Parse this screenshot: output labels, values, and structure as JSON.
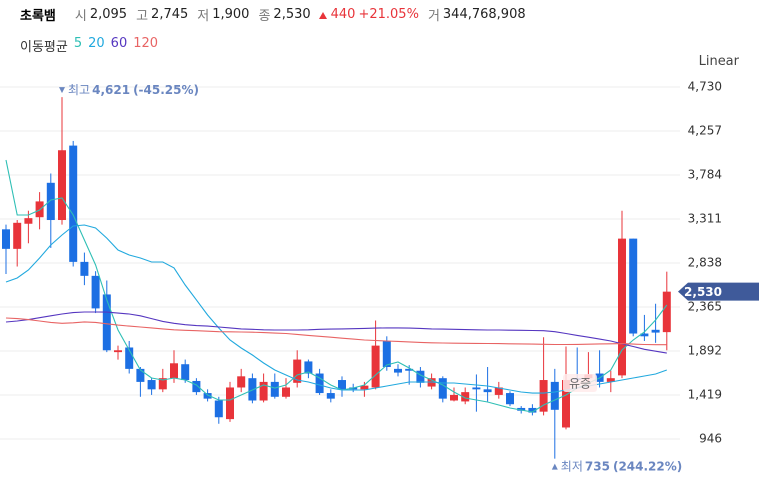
{
  "chart_data": {
    "type": "candlestick",
    "title": "초록뱀",
    "summary": [
      {
        "label": "시",
        "value": "2,095"
      },
      {
        "label": "고",
        "value": "2,745"
      },
      {
        "label": "저",
        "value": "1,900"
      },
      {
        "label": "종",
        "value": "2,530"
      }
    ],
    "change": "440",
    "change_pct": "+21.05%",
    "volume_label": "거",
    "volume": "344,768,908",
    "ma_title": "이동평균",
    "scale": "Linear",
    "up_color": "#e8343a",
    "down_color": "#1c6fe3",
    "grid": true,
    "ylim": [
      613,
      4805
    ],
    "yticks": [
      {
        "value": 4730,
        "label": "4,730"
      },
      {
        "value": 4257,
        "label": "4,257"
      },
      {
        "value": 3784,
        "label": "3,784"
      },
      {
        "value": 3311,
        "label": "3,311"
      },
      {
        "value": 2838,
        "label": "2,838"
      },
      {
        "value": 2365,
        "label": "2,365"
      },
      {
        "value": 1892,
        "label": "1,892"
      },
      {
        "value": 1419,
        "label": "1,419"
      },
      946
    ],
    "open": [
      3200,
      2990,
      3260,
      3330,
      3700,
      3300,
      4100,
      2850,
      2700,
      2500,
      1880,
      1930,
      1700,
      1580,
      1480,
      1600,
      1750,
      1570,
      1440,
      1360,
      1160,
      1500,
      1600,
      1360,
      1560,
      1400,
      1550,
      1780,
      1650,
      1440,
      1580,
      1500,
      1480,
      1500,
      2000,
      1700,
      1700,
      1680,
      1510,
      1600,
      1360,
      1350,
      1500,
      1480,
      1420,
      1440,
      1280,
      1280,
      1240,
      1560,
      1070,
      1600,
      1600,
      1650,
      1560,
      1630,
      3100,
      2080,
      2120,
      2095
    ],
    "high": [
      3250,
      3300,
      3400,
      3600,
      3800,
      4621,
      4150,
      2950,
      2750,
      2650,
      1950,
      2000,
      1720,
      1600,
      1700,
      1900,
      1800,
      1600,
      1480,
      1400,
      1560,
      1700,
      1650,
      1650,
      1650,
      1600,
      1900,
      1800,
      1700,
      1480,
      1620,
      1540,
      1560,
      2220,
      2050,
      1750,
      1740,
      1720,
      1650,
      1620,
      1500,
      1500,
      1640,
      1720,
      1560,
      1460,
      1300,
      1320,
      2040,
      1700,
      1940,
      1930,
      1880,
      1900,
      1680,
      3400,
      3100,
      2280,
      2400,
      2745
    ],
    "low": [
      2720,
      2800,
      3050,
      3200,
      3000,
      3250,
      2800,
      2600,
      2300,
      1880,
      1800,
      1650,
      1400,
      1420,
      1450,
      1550,
      1550,
      1420,
      1350,
      1110,
      1130,
      1450,
      1330,
      1340,
      1380,
      1380,
      1500,
      1600,
      1420,
      1340,
      1400,
      1450,
      1400,
      1480,
      1680,
      1620,
      1530,
      1500,
      1480,
      1340,
      1350,
      1320,
      1240,
      1350,
      1380,
      1300,
      1220,
      1200,
      1200,
      735,
      1050,
      1550,
      1560,
      1500,
      1450,
      1600,
      2050,
      2000,
      1980,
      1900
    ],
    "close": [
      2990,
      3270,
      3320,
      3500,
      3300,
      4050,
      2850,
      2700,
      2350,
      1900,
      1900,
      1700,
      1560,
      1480,
      1600,
      1760,
      1580,
      1450,
      1380,
      1180,
      1500,
      1620,
      1360,
      1560,
      1400,
      1500,
      1800,
      1650,
      1440,
      1380,
      1480,
      1480,
      1520,
      1950,
      1720,
      1660,
      1680,
      1550,
      1600,
      1380,
      1420,
      1450,
      1480,
      1450,
      1500,
      1320,
      1250,
      1230,
      1580,
      1260,
      1580,
      1580,
      1640,
      1560,
      1600,
      3100,
      2080,
      2050,
      2090,
      2530
    ],
    "series": [
      {
        "name": "5",
        "color": "#2fbfb5",
        "values": [
          3945,
          3354,
          3354,
          3408,
          3515,
          3537,
          3354,
          3085,
          2817,
          2441,
          2118,
          1903,
          1688,
          1602,
          1580,
          1602,
          1580,
          1527,
          1419,
          1365,
          1365,
          1419,
          1473,
          1527,
          1494,
          1527,
          1634,
          1666,
          1602,
          1527,
          1473,
          1494,
          1527,
          1634,
          1742,
          1774,
          1709,
          1634,
          1580,
          1527,
          1451,
          1387,
          1365,
          1344,
          1312,
          1279,
          1258,
          1236,
          1312,
          1365,
          1419,
          1494,
          1548,
          1602,
          1688,
          1903,
          2010,
          2096,
          2225,
          2387
        ]
      },
      {
        "name": "20",
        "color": "#22a9de",
        "values": [
          2634,
          2677,
          2763,
          2892,
          3031,
          3139,
          3236,
          3246,
          3214,
          3106,
          2978,
          2924,
          2892,
          2849,
          2849,
          2785,
          2602,
          2441,
          2279,
          2139,
          2010,
          1924,
          1849,
          1763,
          1688,
          1634,
          1580,
          1559,
          1527,
          1494,
          1473,
          1473,
          1473,
          1494,
          1516,
          1537,
          1559,
          1559,
          1559,
          1548,
          1548,
          1537,
          1527,
          1516,
          1494,
          1473,
          1451,
          1440,
          1440,
          1451,
          1473,
          1494,
          1516,
          1537,
          1559,
          1580,
          1602,
          1623,
          1645,
          1688
        ]
      },
      {
        "name": "60",
        "color": "#5536c0",
        "values": [
          2204,
          2215,
          2230,
          2250,
          2270,
          2290,
          2305,
          2311,
          2311,
          2310,
          2300,
          2290,
          2270,
          2240,
          2210,
          2190,
          2175,
          2165,
          2160,
          2150,
          2140,
          2130,
          2125,
          2120,
          2118,
          2118,
          2118,
          2120,
          2125,
          2128,
          2130,
          2132,
          2135,
          2138,
          2140,
          2140,
          2138,
          2135,
          2130,
          2128,
          2125,
          2122,
          2120,
          2118,
          2118,
          2116,
          2115,
          2112,
          2110,
          2100,
          2080,
          2060,
          2040,
          2020,
          2000,
          1970,
          1940,
          1910,
          1890,
          1870
        ]
      },
      {
        "name": "120",
        "color": "#e86464",
        "values": [
          2247,
          2240,
          2230,
          2215,
          2200,
          2190,
          2195,
          2205,
          2200,
          2185,
          2170,
          2160,
          2150,
          2140,
          2130,
          2120,
          2115,
          2110,
          2105,
          2100,
          2098,
          2096,
          2094,
          2090,
          2085,
          2080,
          2070,
          2060,
          2050,
          2040,
          2030,
          2020,
          2010,
          2005,
          2000,
          1995,
          1990,
          1985,
          1980,
          1978,
          1976,
          1975,
          1974,
          1973,
          1972,
          1970,
          1968,
          1966,
          1964,
          1962,
          1962,
          1963,
          1965,
          1968,
          1970,
          1972,
          1966,
          1962,
          1960,
          1960
        ]
      }
    ],
    "annotations": [
      {
        "text": "최고",
        "value": 4621,
        "value_label": "4,621",
        "pct": "(-45.25%)"
      },
      {
        "text": "최저",
        "value": 735,
        "value_label": "735",
        "pct": "(244.22%)"
      }
    ],
    "event": "유증",
    "last": {
      "value": 2530,
      "label": "2,530"
    }
  }
}
